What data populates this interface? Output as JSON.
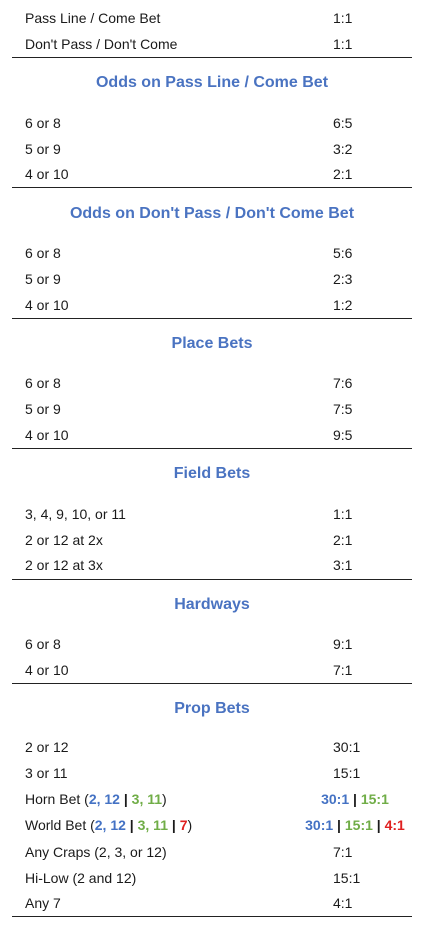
{
  "top_rows": [
    {
      "label": "Pass Line / Come Bet",
      "payout": "1:1"
    },
    {
      "label": "Don't Pass / Don't Come",
      "payout": "1:1"
    }
  ],
  "sections": {
    "odds_pass": {
      "title": "Odds on Pass Line / Come Bet",
      "rows": [
        {
          "label": "6 or 8",
          "payout": "6:5"
        },
        {
          "label": "5 or 9",
          "payout": "3:2"
        },
        {
          "label": "4 or 10",
          "payout": "2:1"
        }
      ]
    },
    "odds_dont": {
      "title": "Odds on Don't Pass / Don't Come Bet",
      "rows": [
        {
          "label": "6 or 8",
          "payout": "5:6"
        },
        {
          "label": "5 or 9",
          "payout": "2:3"
        },
        {
          "label": "4 or 10",
          "payout": "1:2"
        }
      ]
    },
    "place": {
      "title": "Place Bets",
      "rows": [
        {
          "label": "6 or 8",
          "payout": "7:6"
        },
        {
          "label": "5 or 9",
          "payout": "7:5"
        },
        {
          "label": "4 or 10",
          "payout": "9:5"
        }
      ]
    },
    "field": {
      "title": "Field Bets",
      "rows": [
        {
          "label": "3, 4, 9, 10, or 11",
          "payout": "1:1"
        },
        {
          "label": "2 or 12 at 2x",
          "payout": "2:1"
        },
        {
          "label": "2 or 12 at 3x",
          "payout": "3:1"
        }
      ]
    },
    "hardways": {
      "title": "Hardways",
      "rows": [
        {
          "label": "6 or 8",
          "payout": "9:1"
        },
        {
          "label": "4 or 10",
          "payout": "7:1"
        }
      ]
    },
    "prop": {
      "title": "Prop Bets",
      "rows": [
        {
          "label": "2 or 12",
          "payout": "30:1"
        },
        {
          "label": "3 or 11",
          "payout": "15:1"
        }
      ],
      "horn": {
        "label": "Horn Bet (",
        "n1": "2, 12",
        "sep": " | ",
        "n2": "3, 11",
        "close": ")",
        "p1": "30:1",
        "psep": " | ",
        "p2": "15:1"
      },
      "world": {
        "label": "World Bet (",
        "n1": "2, 12",
        "sep": " | ",
        "n2": "3, 11",
        "sep2": " | ",
        "n3": "7",
        "close": ")",
        "p1": "30:1",
        "psep": " | ",
        "p2": "15:1",
        "psep2": " | ",
        "p3": "4:1"
      },
      "rows_after": [
        {
          "label": "Any Craps (2, 3, or 12)",
          "payout": "7:1"
        },
        {
          "label": "Hi-Low (2 and 12)",
          "payout": "15:1"
        },
        {
          "label": "Any 7",
          "payout": "4:1"
        }
      ]
    }
  },
  "colors": {
    "header_blue": "#4a73c1",
    "num_blue": "#4472c4",
    "num_green": "#70ad47",
    "num_red": "#e02020"
  }
}
